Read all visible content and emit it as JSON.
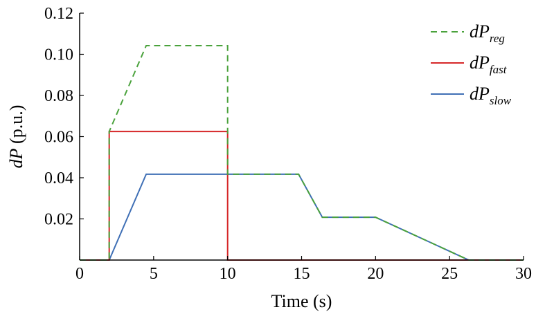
{
  "chart_data": {
    "type": "line",
    "xlabel": "Time (s)",
    "ylabel_italic": "dP",
    "ylabel_rest": " (p.u.)",
    "xlim": [
      0,
      30
    ],
    "ylim": [
      0,
      0.12
    ],
    "xticks": [
      0,
      5,
      10,
      15,
      20,
      25,
      30
    ],
    "xtick_labels": [
      "0",
      "5",
      "10",
      "15",
      "20",
      "25",
      "30"
    ],
    "yticks": [
      0.02,
      0.04,
      0.06,
      0.08,
      0.1,
      0.12
    ],
    "ytick_labels": [
      "0.02",
      "0.04",
      "0.06",
      "0.08",
      "0.10",
      "0.12"
    ],
    "grid": false,
    "legend_position": "top-right",
    "series": [
      {
        "name": "dP_reg",
        "legend_main": "dP",
        "legend_sub": "reg",
        "color": "#4aa23c",
        "dash": "dashed",
        "x": [
          0,
          2,
          2,
          4.5,
          10,
          10,
          14.8,
          16.4,
          20,
          26.3,
          30
        ],
        "y": [
          0,
          0,
          0.0625,
          0.1042,
          0.1042,
          0.0417,
          0.0417,
          0.0208,
          0.0208,
          0,
          0
        ]
      },
      {
        "name": "dP_fast",
        "legend_main": "dP",
        "legend_sub": "fast",
        "color": "#d62728",
        "dash": "solid",
        "x": [
          0,
          2,
          2,
          10,
          10,
          30
        ],
        "y": [
          0,
          0,
          0.0625,
          0.0625,
          0,
          0
        ]
      },
      {
        "name": "dP_slow",
        "legend_main": "dP",
        "legend_sub": "slow",
        "color": "#3f6fb5",
        "dash": "solid",
        "x": [
          0,
          2,
          4.5,
          14.8,
          16.4,
          20,
          26.3,
          30
        ],
        "y": [
          0,
          0,
          0.0417,
          0.0417,
          0.0208,
          0.0208,
          0,
          0
        ]
      }
    ]
  }
}
